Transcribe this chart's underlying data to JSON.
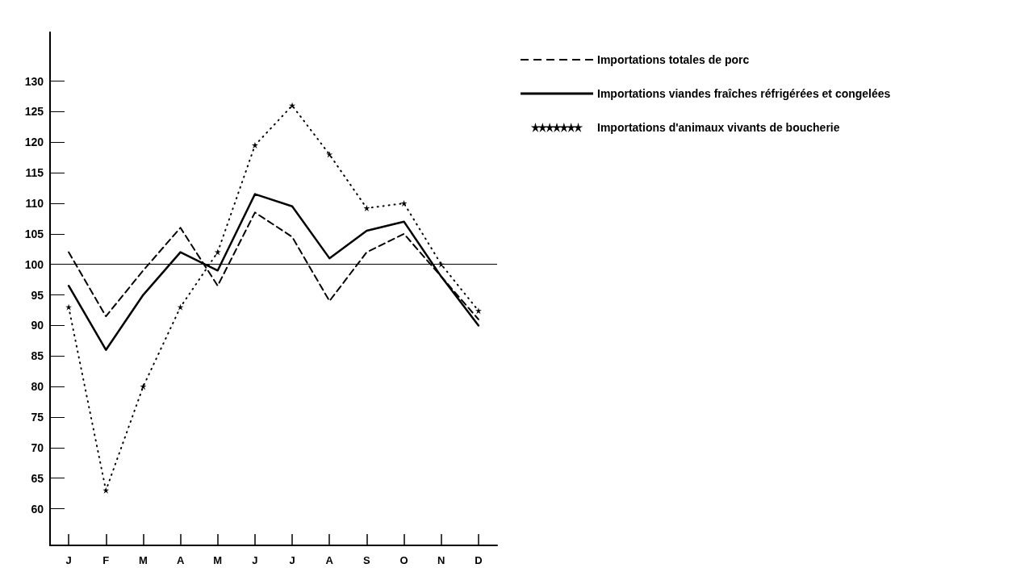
{
  "chart_data": {
    "type": "line",
    "categories": [
      "J",
      "F",
      "M",
      "A",
      "M",
      "J",
      "J",
      "A",
      "S",
      "O",
      "N",
      "D"
    ],
    "series": [
      {
        "name": "Importations totales de porc",
        "color": "#000000",
        "line_style": "dashed",
        "marker": "none",
        "values": [
          102,
          91.5,
          99,
          106,
          96.5,
          108.5,
          104.5,
          94,
          102,
          105,
          98,
          91
        ]
      },
      {
        "name": "Importations viandes fraîches réfrigérées et congelées",
        "color": "#000000",
        "line_style": "solid",
        "marker": "none",
        "values": [
          96.5,
          86,
          95,
          102,
          99,
          111.5,
          109.5,
          101,
          105.5,
          107,
          98,
          90
        ]
      },
      {
        "name": "Importations d'animaux vivants de boucherie",
        "color": "#000000",
        "line_style": "dotted",
        "marker": "star",
        "values": [
          93,
          63,
          80,
          93,
          102,
          119.5,
          126,
          118,
          109.2,
          110,
          100,
          92.4
        ]
      }
    ],
    "ylim": [
      54,
      138
    ],
    "yticks": [
      60,
      65,
      70,
      75,
      80,
      85,
      90,
      95,
      100,
      105,
      110,
      115,
      120,
      125,
      130
    ],
    "ref_lines": [
      {
        "axis": "y",
        "value": 100
      }
    ],
    "grid": false,
    "legend": "top right"
  }
}
